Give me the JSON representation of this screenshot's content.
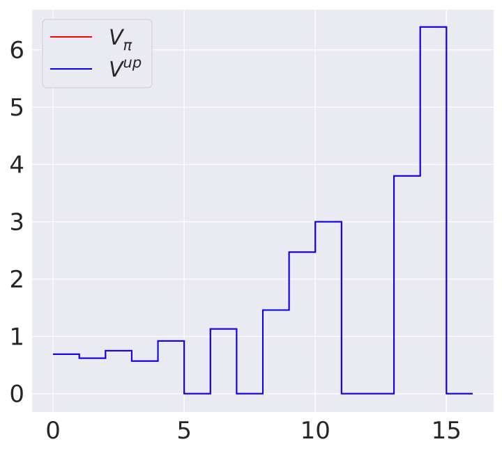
{
  "chart_data": {
    "type": "line",
    "drawstyle": "steps-post",
    "x": [
      0,
      1,
      2,
      3,
      4,
      5,
      6,
      7,
      8,
      9,
      10,
      11,
      12,
      13,
      14,
      15,
      16
    ],
    "xlim": [
      -0.8,
      16.8
    ],
    "ylim": [
      -0.32,
      6.7
    ],
    "xticks": [
      0,
      5,
      10,
      15
    ],
    "yticks": [
      0,
      1,
      2,
      3,
      4,
      5,
      6
    ],
    "grid": true,
    "legend_position": "top-left",
    "series": [
      {
        "name": "V_π",
        "color": "#ff0000",
        "values": [
          0.69,
          0.62,
          0.75,
          0.57,
          0.92,
          0.0,
          1.13,
          0.0,
          1.46,
          2.47,
          3.0,
          0.0,
          0.0,
          3.8,
          6.4,
          0.0,
          0.0
        ]
      },
      {
        "name": "V^up",
        "color": "#0000ff",
        "values": [
          0.69,
          0.62,
          0.75,
          0.57,
          0.92,
          0.0,
          1.13,
          0.0,
          1.46,
          2.47,
          3.0,
          0.0,
          0.0,
          3.8,
          6.4,
          0.0,
          0.0
        ]
      }
    ]
  },
  "legend": {
    "entries": [
      {
        "base": "V",
        "sub": "π",
        "sup": ""
      },
      {
        "base": "V",
        "sub": "",
        "sup": "up"
      }
    ]
  },
  "style": {
    "axes_bg": "#eaeaf2",
    "grid_color": "#ffffff"
  }
}
